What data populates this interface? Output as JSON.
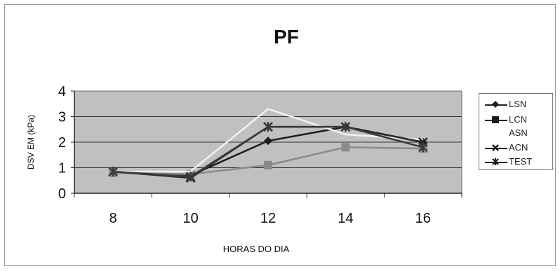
{
  "chart_data": {
    "type": "line",
    "title": "PF",
    "xlabel": "HORAS DO DIA",
    "ylabel": "DSV EM (kPa)",
    "x": [
      8,
      10,
      12,
      14,
      16
    ],
    "ylim": [
      0,
      4
    ],
    "yticks": [
      0,
      1,
      2,
      3,
      4
    ],
    "grid": "horizontal",
    "legend_position": "right",
    "plot_background": "#c0c0c0",
    "series": [
      {
        "name": "LSN",
        "values": [
          0.85,
          0.7,
          2.05,
          2.6,
          2.0
        ],
        "color": "#1c1c1c",
        "marker": "diamond"
      },
      {
        "name": "LCN",
        "values": [
          0.8,
          0.75,
          1.1,
          1.8,
          1.75
        ],
        "color": "#8a8a8a",
        "marker": "square"
      },
      {
        "name": "ASN",
        "values": [
          0.85,
          0.85,
          3.3,
          2.3,
          2.1
        ],
        "color": "#f2f2f2",
        "marker": "none"
      },
      {
        "name": "ACN",
        "values": [
          0.85,
          0.6,
          2.6,
          2.6,
          2.0
        ],
        "color": "#2a2a2a",
        "marker": "x"
      },
      {
        "name": "TEST",
        "values": [
          0.85,
          0.65,
          2.6,
          2.6,
          1.8
        ],
        "color": "#3a3a3a",
        "marker": "asterisk"
      }
    ]
  }
}
